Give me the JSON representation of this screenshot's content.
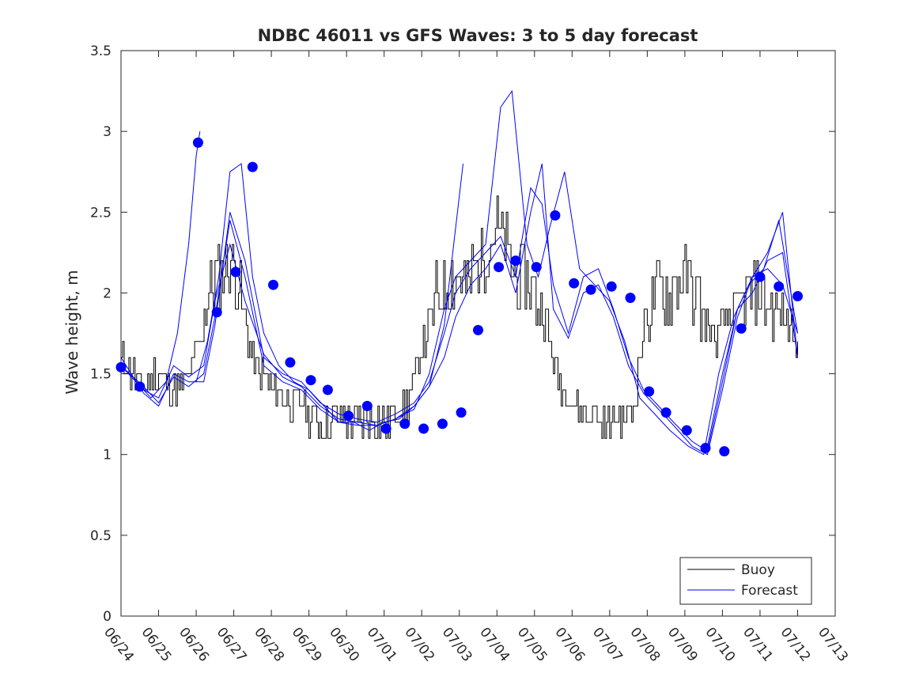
{
  "chart_data": {
    "type": "line",
    "title": "NDBC 46011 vs GFS Waves: 3 to 5 day forecast",
    "xlabel": "",
    "ylabel": "Wave height, m",
    "xlim": [
      "06/24",
      "07/13"
    ],
    "ylim": [
      0,
      3.5
    ],
    "x_ticks": [
      "06/24",
      "06/25",
      "06/26",
      "06/27",
      "06/28",
      "06/29",
      "06/30",
      "07/01",
      "07/02",
      "07/03",
      "07/04",
      "07/05",
      "07/06",
      "07/07",
      "07/08",
      "07/09",
      "07/10",
      "07/11",
      "07/12",
      "07/13"
    ],
    "y_ticks": [
      "0",
      "0.5",
      "1",
      "1.5",
      "2",
      "2.5",
      "3",
      "3.5"
    ],
    "grid": false,
    "legend_position": "bottom-right",
    "legend": [
      {
        "label": "Buoy",
        "color": "#000000"
      },
      {
        "label": "Forecast",
        "color": "#0000ff"
      }
    ],
    "colors": {
      "buoy": "#000000",
      "forecast": "#0000ff",
      "axes": "#262626"
    },
    "series": [
      {
        "name": "Buoy",
        "x_days": [
          0,
          0.3,
          0.6,
          0.9,
          1.2,
          1.5,
          1.8,
          2.1,
          2.3,
          2.5,
          2.7,
          2.9,
          3.1,
          3.3,
          3.5,
          3.7,
          3.9,
          4.1,
          4.3,
          4.6,
          4.9,
          5.2,
          5.5,
          5.8,
          6.1,
          6.4,
          6.7,
          7.0,
          7.3,
          7.6,
          7.9,
          8.2,
          8.4,
          8.6,
          8.8,
          9.0,
          9.2,
          9.4,
          9.6,
          9.8,
          10.0,
          10.2,
          10.4,
          10.6,
          10.8,
          11.0,
          11.2,
          11.4,
          11.6,
          11.8,
          12.0,
          12.2,
          12.4,
          12.6,
          12.8,
          13.0,
          13.2,
          13.4,
          13.6,
          13.8,
          14.0,
          14.3,
          14.6,
          14.9,
          15.2,
          15.5,
          15.8,
          16.0,
          16.2,
          16.4,
          16.6,
          16.8,
          17.0,
          17.2,
          17.4,
          17.6,
          17.8,
          18.0
        ],
        "y": [
          1.6,
          1.5,
          1.4,
          1.5,
          1.4,
          1.4,
          1.5,
          1.7,
          2.0,
          2.1,
          2.15,
          2.2,
          2.1,
          1.8,
          1.6,
          1.5,
          1.45,
          1.4,
          1.35,
          1.3,
          1.3,
          1.2,
          1.2,
          1.25,
          1.2,
          1.2,
          1.25,
          1.2,
          1.25,
          1.3,
          1.6,
          1.8,
          2.0,
          2.05,
          2.1,
          2.1,
          2.05,
          2.15,
          2.2,
          2.3,
          2.4,
          2.3,
          2.15,
          2.05,
          2.1,
          2.0,
          1.9,
          1.7,
          1.5,
          1.4,
          1.35,
          1.3,
          1.25,
          1.25,
          1.2,
          1.2,
          1.25,
          1.2,
          1.3,
          1.6,
          1.9,
          2.0,
          2.0,
          2.1,
          2.05,
          1.85,
          1.7,
          1.8,
          1.85,
          1.9,
          1.95,
          1.95,
          2.0,
          1.95,
          1.9,
          1.85,
          1.8,
          1.75
        ]
      },
      {
        "name": "Forecast",
        "runs": [
          {
            "x_days": [
              0,
              0.4,
              0.8,
              1.2,
              1.5,
              1.8,
              2.0,
              2.1
            ],
            "y": [
              1.55,
              1.45,
              1.35,
              1.45,
              1.75,
              2.3,
              2.85,
              3.0
            ]
          },
          {
            "x_days": [
              2.0,
              2.3,
              2.6,
              2.9,
              3.2,
              3.5,
              3.8,
              4.2,
              4.6,
              5.0,
              5.4,
              5.8,
              6.2,
              6.6,
              7.0,
              7.4,
              7.8,
              8.2,
              8.6,
              8.9,
              9.1
            ],
            "y": [
              1.45,
              1.7,
              2.1,
              2.75,
              2.8,
              2.1,
              1.75,
              1.55,
              1.45,
              1.4,
              1.3,
              1.2,
              1.2,
              1.15,
              1.2,
              1.22,
              1.3,
              1.42,
              1.8,
              2.4,
              2.8
            ]
          },
          {
            "x_days": [
              0,
              0.6,
              1.0,
              1.4,
              1.8,
              2.2,
              2.5,
              2.9,
              3.3,
              3.8,
              4.3,
              4.8,
              5.3,
              5.8,
              6.3,
              6.8,
              7.3,
              7.8,
              8.2,
              8.6,
              8.9,
              9.3,
              9.7,
              10.1,
              10.4,
              10.8,
              11.1,
              11.4,
              11.8,
              12.2,
              12.6,
              13.0,
              13.4,
              13.8,
              14.2,
              14.6,
              15.1,
              15.5,
              15.9,
              16.3,
              16.7,
              17.1,
              17.5,
              18.0
            ],
            "y": [
              1.55,
              1.4,
              1.35,
              1.55,
              1.48,
              1.55,
              1.95,
              2.3,
              1.95,
              1.62,
              1.48,
              1.42,
              1.3,
              1.22,
              1.2,
              1.18,
              1.22,
              1.28,
              1.5,
              1.9,
              2.1,
              2.2,
              2.3,
              3.15,
              3.25,
              2.3,
              2.1,
              2.4,
              2.75,
              2.15,
              2.05,
              1.95,
              1.7,
              1.35,
              1.25,
              1.15,
              1.05,
              1.0,
              1.5,
              1.85,
              2.05,
              2.15,
              2.45,
              1.75
            ]
          },
          {
            "x_days": [
              0,
              0.6,
              1.0,
              1.4,
              1.8,
              2.2,
              2.5,
              2.9,
              3.3,
              3.8,
              4.3,
              4.8,
              5.3,
              5.8,
              6.3,
              6.8,
              7.3,
              7.8,
              8.2,
              8.6,
              8.9,
              9.3,
              9.7,
              10.1,
              10.5,
              10.9,
              11.2,
              11.5,
              11.9,
              12.3,
              12.7,
              13.1,
              13.5,
              13.9,
              14.3,
              14.7,
              15.2,
              15.6,
              16.0,
              16.4,
              16.8,
              17.2,
              17.6,
              18.0
            ],
            "y": [
              1.6,
              1.38,
              1.3,
              1.5,
              1.45,
              1.45,
              1.8,
              2.5,
              2.2,
              1.6,
              1.5,
              1.45,
              1.32,
              1.25,
              1.22,
              1.2,
              1.25,
              1.32,
              1.45,
              1.75,
              2.0,
              2.15,
              2.25,
              2.35,
              2.1,
              2.65,
              2.55,
              2.05,
              1.75,
              2.1,
              2.15,
              1.9,
              1.6,
              1.4,
              1.3,
              1.2,
              1.08,
              1.02,
              1.45,
              1.9,
              2.0,
              2.2,
              2.25,
              1.6
            ]
          },
          {
            "x_days": [
              0,
              0.6,
              1.0,
              1.4,
              1.8,
              2.2,
              2.5,
              2.9,
              3.3,
              3.8,
              4.3,
              4.8,
              5.3,
              5.8,
              6.3,
              6.8,
              7.3,
              7.8,
              8.2,
              8.6,
              8.9,
              9.3,
              9.7,
              10.1,
              10.5,
              10.9,
              11.2,
              11.5,
              11.9,
              12.3,
              12.7,
              13.1,
              13.5,
              13.9,
              14.3,
              14.7,
              15.2,
              15.6,
              16.0,
              16.4,
              16.8,
              17.2,
              17.6,
              18.0
            ],
            "y": [
              1.55,
              1.42,
              1.32,
              1.48,
              1.42,
              1.5,
              1.85,
              2.45,
              2.1,
              1.55,
              1.45,
              1.4,
              1.28,
              1.2,
              1.18,
              1.18,
              1.22,
              1.3,
              1.42,
              1.6,
              1.85,
              2.05,
              2.15,
              2.3,
              2.0,
              2.5,
              2.8,
              1.9,
              1.72,
              2.0,
              2.05,
              1.85,
              1.55,
              1.38,
              1.28,
              1.18,
              1.05,
              1.0,
              1.4,
              1.85,
              2.1,
              2.15,
              2.05,
              1.75
            ]
          },
          {
            "x_days": [
              15.6,
              16.0,
              16.4,
              16.8,
              17.2,
              17.6,
              18.0
            ],
            "y": [
              1.05,
              1.5,
              1.9,
              2.1,
              2.25,
              2.5,
              1.6
            ]
          }
        ]
      }
    ],
    "forecast_markers": {
      "x_days": [
        0,
        0.5,
        2.05,
        2.55,
        3.05,
        3.5,
        4.05,
        4.5,
        5.05,
        5.5,
        6.05,
        6.55,
        7.05,
        7.55,
        8.05,
        8.55,
        9.05,
        9.5,
        10.05,
        10.5,
        11.05,
        11.55,
        12.05,
        12.5,
        13.05,
        13.55,
        14.05,
        14.5,
        15.05,
        15.55,
        16.05,
        16.5,
        17.0,
        17.5,
        18.0
      ],
      "y": [
        1.54,
        1.42,
        2.93,
        1.88,
        2.13,
        2.78,
        2.05,
        1.57,
        1.46,
        1.4,
        1.24,
        1.3,
        1.16,
        1.19,
        1.16,
        1.19,
        1.26,
        1.77,
        2.16,
        2.2,
        2.16,
        2.48,
        2.06,
        2.02,
        2.04,
        1.97,
        1.39,
        1.26,
        1.15,
        1.04,
        1.02,
        1.78,
        2.1,
        2.04,
        1.98
      ]
    }
  }
}
